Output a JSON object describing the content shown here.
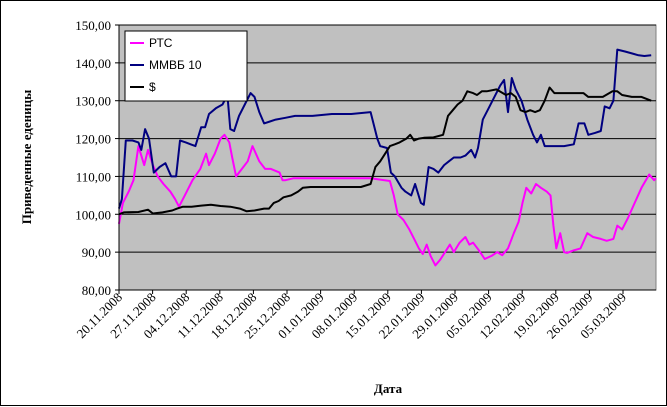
{
  "chart_data": {
    "type": "line",
    "xlabel": "Дата",
    "ylabel": "Приведенные еденицы",
    "ylim": [
      80,
      150
    ],
    "yticks": [
      "80,00",
      "90,00",
      "100,00",
      "110,00",
      "120,00",
      "130,00",
      "140,00",
      "150,00"
    ],
    "xticks": [
      "20.11.2008",
      "27.11.2008",
      "04.12.2008",
      "11.12.2008",
      "18.12.2008",
      "25.12.2008",
      "01.01.2009",
      "08.01.2009",
      "15.01.2009",
      "22.01.2009",
      "29.01.2009",
      "05.02.2009",
      "12.02.2009",
      "19.02.2009",
      "26.02.2009",
      "05.03.2009"
    ],
    "grid": "horizontal",
    "plot_background": "#c0c0c0",
    "legend_position": "top-left",
    "series": [
      {
        "name": "РТС",
        "color": "#ff00ff",
        "points": [
          [
            0,
            97.5
          ],
          [
            0.4,
            103
          ],
          [
            1,
            106
          ],
          [
            1.5,
            109
          ],
          [
            2,
            118
          ],
          [
            2.6,
            113
          ],
          [
            3,
            117
          ],
          [
            3.5,
            113
          ],
          [
            4,
            110
          ],
          [
            4.6,
            108
          ],
          [
            5.3,
            106
          ],
          [
            5.8,
            104
          ],
          [
            6.2,
            102
          ],
          [
            6.8,
            105
          ],
          [
            7.6,
            109
          ],
          [
            8.4,
            112
          ],
          [
            9.0,
            116
          ],
          [
            9.3,
            113
          ],
          [
            9.9,
            116
          ],
          [
            10.5,
            120
          ],
          [
            10.9,
            121
          ],
          [
            11.4,
            119
          ],
          [
            11.7,
            115
          ],
          [
            12.1,
            110
          ],
          [
            12.7,
            112
          ],
          [
            13.3,
            114
          ],
          [
            13.8,
            118
          ],
          [
            14.5,
            114
          ],
          [
            15.1,
            112
          ],
          [
            15.7,
            112
          ],
          [
            16.6,
            111
          ],
          [
            16.9,
            109
          ],
          [
            17.2,
            109
          ],
          [
            18.0,
            109.5
          ],
          [
            26.0,
            109.5
          ],
          [
            28.0,
            108.8
          ],
          [
            28.4,
            105
          ],
          [
            28.8,
            100
          ],
          [
            29.4,
            98.5
          ],
          [
            30.0,
            96
          ],
          [
            30.6,
            93
          ],
          [
            31.0,
            91
          ],
          [
            31.4,
            89.5
          ],
          [
            31.8,
            92
          ],
          [
            32.2,
            89
          ],
          [
            32.7,
            86.5
          ],
          [
            33.2,
            88
          ],
          [
            33.7,
            90
          ],
          [
            34.2,
            92
          ],
          [
            34.6,
            90
          ],
          [
            35.2,
            92.5
          ],
          [
            35.8,
            94
          ],
          [
            36.2,
            92
          ],
          [
            36.6,
            92.5
          ],
          [
            37.2,
            90.5
          ],
          [
            37.8,
            88.2
          ],
          [
            38.5,
            89
          ],
          [
            39.1,
            90
          ],
          [
            39.6,
            89.2
          ],
          [
            40.2,
            91
          ],
          [
            40.8,
            95
          ],
          [
            41.3,
            98
          ],
          [
            41.7,
            103
          ],
          [
            42.1,
            107
          ],
          [
            42.6,
            105.5
          ],
          [
            43.1,
            108
          ],
          [
            43.6,
            107
          ],
          [
            44.2,
            106
          ],
          [
            44.6,
            105
          ],
          [
            44.9,
            97
          ],
          [
            45.2,
            91
          ],
          [
            45.6,
            95
          ],
          [
            46.0,
            90
          ],
          [
            46.3,
            89.8
          ],
          [
            47.0,
            90.5
          ],
          [
            47.7,
            91
          ],
          [
            48.4,
            95
          ],
          [
            49.0,
            94
          ],
          [
            49.8,
            93.5
          ],
          [
            50.4,
            93
          ],
          [
            51.1,
            93.5
          ],
          [
            51.5,
            97
          ],
          [
            52.0,
            96
          ],
          [
            52.6,
            99
          ],
          [
            53.3,
            103
          ],
          [
            54.0,
            107
          ],
          [
            54.8,
            110.5
          ],
          [
            55.3,
            109
          ],
          [
            55.5,
            109.5
          ]
        ]
      },
      {
        "name": "ММВБ 10",
        "color": "#000080",
        "points": [
          [
            0,
            101.5
          ],
          [
            0.3,
            104
          ],
          [
            0.7,
            119.5
          ],
          [
            1.4,
            119.5
          ],
          [
            2.0,
            119
          ],
          [
            2.3,
            117
          ],
          [
            2.7,
            122.5
          ],
          [
            3.1,
            120
          ],
          [
            3.6,
            111
          ],
          [
            4.2,
            112.5
          ],
          [
            4.8,
            113.5
          ],
          [
            5.4,
            110
          ],
          [
            5.9,
            110
          ],
          [
            6.3,
            119.5
          ],
          [
            6.9,
            119
          ],
          [
            7.4,
            118.5
          ],
          [
            7.9,
            118
          ],
          [
            8.5,
            123
          ],
          [
            8.9,
            123
          ],
          [
            9.3,
            126.5
          ],
          [
            10.0,
            128
          ],
          [
            10.7,
            129
          ],
          [
            11.2,
            131.5
          ],
          [
            11.5,
            122.5
          ],
          [
            11.9,
            122
          ],
          [
            12.4,
            126
          ],
          [
            13.0,
            129
          ],
          [
            13.6,
            132
          ],
          [
            14.0,
            131
          ],
          [
            14.5,
            127
          ],
          [
            15.0,
            124
          ],
          [
            15.6,
            124.5
          ],
          [
            16.2,
            125
          ],
          [
            17.2,
            125.5
          ],
          [
            18.2,
            126
          ],
          [
            20.0,
            126
          ],
          [
            22.0,
            126.5
          ],
          [
            24.0,
            126.5
          ],
          [
            26.0,
            127
          ],
          [
            26.7,
            120
          ],
          [
            27.0,
            118
          ],
          [
            27.7,
            117.5
          ],
          [
            28.1,
            111
          ],
          [
            28.5,
            110
          ],
          [
            29.2,
            107
          ],
          [
            29.6,
            106
          ],
          [
            30.2,
            105
          ],
          [
            30.6,
            108
          ],
          [
            31.2,
            103
          ],
          [
            31.5,
            102.5
          ],
          [
            32.0,
            112.5
          ],
          [
            32.5,
            112
          ],
          [
            33.0,
            111
          ],
          [
            33.6,
            113
          ],
          [
            34.1,
            114
          ],
          [
            34.6,
            115
          ],
          [
            35.3,
            115
          ],
          [
            35.8,
            115.5
          ],
          [
            36.4,
            117
          ],
          [
            36.8,
            115
          ],
          [
            37.1,
            117.5
          ],
          [
            37.6,
            125
          ],
          [
            38.2,
            128
          ],
          [
            38.8,
            131
          ],
          [
            39.4,
            134
          ],
          [
            39.8,
            135.5
          ],
          [
            40.2,
            127
          ],
          [
            40.6,
            136
          ],
          [
            41.0,
            133
          ],
          [
            41.6,
            130
          ],
          [
            42.2,
            125
          ],
          [
            42.8,
            121
          ],
          [
            43.2,
            119
          ],
          [
            43.6,
            121
          ],
          [
            44.0,
            118
          ],
          [
            45.0,
            118
          ],
          [
            46.0,
            118
          ],
          [
            47.0,
            118.5
          ],
          [
            47.5,
            124
          ],
          [
            48.1,
            124
          ],
          [
            48.5,
            121
          ],
          [
            49.2,
            121.5
          ],
          [
            49.8,
            122
          ],
          [
            50.2,
            128.5
          ],
          [
            50.7,
            128
          ],
          [
            51.1,
            130
          ],
          [
            51.5,
            143.5
          ],
          [
            52.3,
            143
          ],
          [
            53.0,
            142.5
          ],
          [
            53.7,
            142
          ],
          [
            54.3,
            141.8
          ],
          [
            55.0,
            142
          ]
        ]
      },
      {
        "name": "$",
        "color": "#000000",
        "points": [
          [
            0,
            100
          ],
          [
            0.5,
            100.5
          ],
          [
            2,
            100.6
          ],
          [
            3,
            101.2
          ],
          [
            3.5,
            100.2
          ],
          [
            4.5,
            100.5
          ],
          [
            5.5,
            101
          ],
          [
            6.0,
            101.5
          ],
          [
            6.6,
            102
          ],
          [
            7.5,
            102
          ],
          [
            8.5,
            102.3
          ],
          [
            9.5,
            102.5
          ],
          [
            10.5,
            102.2
          ],
          [
            11.5,
            102
          ],
          [
            12.5,
            101.5
          ],
          [
            13.2,
            100.8
          ],
          [
            14.0,
            101
          ],
          [
            15.0,
            101.5
          ],
          [
            15.5,
            101.5
          ],
          [
            16.0,
            103
          ],
          [
            16.5,
            103.5
          ],
          [
            17.0,
            104.5
          ],
          [
            17.8,
            105
          ],
          [
            18.5,
            106
          ],
          [
            19.0,
            107
          ],
          [
            19.8,
            107.2
          ],
          [
            21.0,
            107.2
          ],
          [
            23.0,
            107.2
          ],
          [
            25.0,
            107.2
          ],
          [
            26.0,
            108
          ],
          [
            26.5,
            112.5
          ],
          [
            27.0,
            114
          ],
          [
            27.5,
            116
          ],
          [
            28.0,
            118
          ],
          [
            28.5,
            118.5
          ],
          [
            29.0,
            119
          ],
          [
            29.7,
            120
          ],
          [
            30.1,
            121
          ],
          [
            30.5,
            119.5
          ],
          [
            31.0,
            120
          ],
          [
            31.5,
            120.2
          ],
          [
            32.5,
            120.3
          ],
          [
            33.5,
            121
          ],
          [
            34.0,
            126
          ],
          [
            34.5,
            127.5
          ],
          [
            35.0,
            129
          ],
          [
            35.5,
            130
          ],
          [
            36.0,
            132.5
          ],
          [
            36.6,
            132
          ],
          [
            37.0,
            131.5
          ],
          [
            37.5,
            132.5
          ],
          [
            38.0,
            132.5
          ],
          [
            39.0,
            133
          ],
          [
            40.0,
            131.5
          ],
          [
            40.5,
            132
          ],
          [
            41.0,
            131
          ],
          [
            41.5,
            127.5
          ],
          [
            42.0,
            127
          ],
          [
            42.5,
            127.5
          ],
          [
            43.0,
            127
          ],
          [
            43.5,
            127.5
          ],
          [
            44.0,
            130
          ],
          [
            44.5,
            133.5
          ],
          [
            45.0,
            132
          ],
          [
            46.0,
            132
          ],
          [
            47.0,
            132
          ],
          [
            48.0,
            132
          ],
          [
            48.5,
            131
          ],
          [
            49.0,
            131
          ],
          [
            50.0,
            131
          ],
          [
            51.0,
            132.5
          ],
          [
            51.5,
            132.5
          ],
          [
            52.0,
            131.5
          ],
          [
            53.0,
            131
          ],
          [
            54.0,
            131
          ],
          [
            54.5,
            130.5
          ],
          [
            55.0,
            130
          ]
        ]
      }
    ]
  }
}
